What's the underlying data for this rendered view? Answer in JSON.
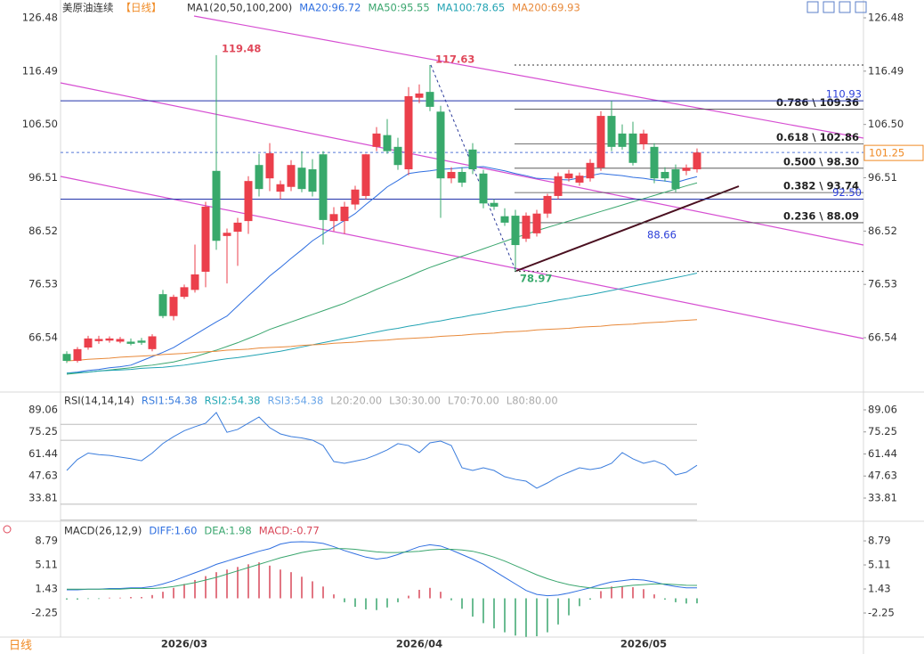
{
  "chart_data": [
    {
      "type": "candlestick",
      "title": "美原油连续",
      "period": "【日线】",
      "indicator": "MA1(20,50,100,200)",
      "tab": "日线",
      "categories": [
        null,
        null,
        null,
        null,
        null,
        null,
        null,
        null,
        null,
        null,
        null,
        "2026/03",
        null,
        null,
        null,
        null,
        null,
        null,
        null,
        null,
        null,
        null,
        null,
        null,
        null,
        null,
        null,
        null,
        null,
        null,
        null,
        null,
        null,
        "2026/04",
        null,
        null,
        null,
        null,
        null,
        null,
        null,
        null,
        null,
        null,
        null,
        null,
        null,
        null,
        null,
        null,
        null,
        null,
        null,
        null,
        "2026/05",
        null,
        null,
        null,
        null,
        null
      ],
      "open": [
        63.5,
        62.2,
        64.7,
        65.9,
        66.0,
        65.8,
        65.8,
        66.0,
        64.4,
        74.7,
        70.6,
        74.2,
        75.5,
        78.9,
        97.8,
        85.6,
        86.4,
        88.4,
        98.9,
        96.4,
        93.9,
        94.8,
        98.4,
        98.1,
        100.9,
        88.4,
        88.4,
        91.5,
        93.1,
        102.3,
        104.5,
        102.3,
        98.1,
        111.5,
        112.6,
        108.9,
        96.4,
        97.6,
        101.8,
        97.3,
        91.8,
        89.3,
        89.4,
        85.1,
        86.1,
        89.8,
        93.1,
        96.4,
        95.6,
        96.4,
        98.4,
        108.1,
        104.8,
        104.8,
        102.8,
        102.3,
        97.6,
        98.1,
        97.8,
        98.1
      ],
      "high": [
        64.0,
        64.8,
        66.9,
        66.9,
        66.8,
        66.7,
        66.4,
        66.5,
        67.2,
        75.5,
        74.6,
        76.5,
        84.0,
        92.0,
        119.48,
        87.0,
        89.0,
        96.8,
        101.0,
        103.0,
        96.0,
        99.8,
        101.5,
        100.0,
        101.5,
        91.0,
        92.0,
        95.0,
        101.0,
        106.0,
        107.5,
        104.0,
        113.5,
        114.0,
        117.63,
        110.0,
        98.5,
        98.5,
        103.0,
        98.0,
        92.5,
        90.8,
        90.5,
        90.0,
        90.5,
        93.5,
        97.5,
        98.0,
        97.5,
        100.0,
        109.0,
        110.93,
        106.5,
        107.0,
        105.5,
        103.0,
        98.5,
        99.0,
        99.0,
        102.0
      ],
      "low": [
        61.8,
        61.9,
        64.3,
        65.4,
        65.6,
        65.5,
        65.1,
        65.2,
        64.0,
        70.2,
        69.8,
        73.8,
        75.0,
        76.0,
        83.0,
        76.7,
        80.0,
        86.0,
        93.0,
        94.0,
        92.5,
        94.0,
        93.8,
        93.0,
        84.0,
        86.5,
        86.0,
        90.5,
        92.5,
        101.5,
        101.0,
        98.0,
        97.0,
        110.5,
        109.0,
        89.0,
        95.5,
        94.8,
        97.2,
        90.8,
        90.5,
        87.5,
        78.97,
        84.5,
        85.5,
        89.0,
        92.5,
        95.8,
        95.0,
        95.8,
        97.8,
        101.5,
        101.8,
        98.8,
        101.8,
        95.5,
        95.8,
        93.8,
        97.0,
        97.5
      ],
      "close": [
        62.2,
        64.4,
        66.4,
        66.3,
        66.4,
        66.3,
        65.4,
        65.6,
        66.8,
        70.6,
        74.2,
        76.0,
        78.4,
        91.1,
        84.7,
        86.2,
        88.1,
        95.9,
        94.4,
        101.1,
        95.3,
        98.9,
        94.4,
        93.9,
        88.6,
        89.7,
        91.1,
        94.3,
        100.9,
        104.8,
        101.5,
        98.9,
        111.8,
        112.3,
        109.8,
        96.4,
        97.6,
        95.6,
        98.1,
        91.7,
        91.1,
        88.1,
        83.9,
        89.4,
        89.8,
        93.1,
        96.8,
        97.3,
        96.9,
        99.3,
        108.1,
        102.3,
        102.3,
        99.3,
        104.8,
        96.4,
        96.4,
        94.4,
        98.4,
        101.25
      ],
      "up_color": "#eb3f4b",
      "down_color": "#38a96b",
      "series": [
        {
          "name": "MA20:96.72",
          "color": "#2f6fe0",
          "values": [
            59.9,
            60.1,
            60.4,
            60.6,
            60.9,
            61.1,
            61.4,
            62.2,
            63.0,
            63.8,
            64.7,
            65.9,
            67.1,
            68.3,
            69.5,
            70.6,
            72.5,
            74.4,
            76.2,
            78.1,
            79.7,
            81.4,
            83.0,
            84.7,
            86.0,
            87.3,
            88.5,
            89.8,
            91.5,
            93.1,
            94.8,
            96.0,
            97.3,
            97.6,
            97.8,
            98.1,
            98.2,
            98.4,
            98.5,
            98.6,
            98.2,
            97.8,
            97.3,
            96.9,
            96.4,
            96.3,
            96.2,
            96.1,
            96.5,
            96.9,
            97.3,
            97.1,
            96.9,
            96.6,
            96.4,
            96.1,
            95.9,
            95.6,
            96.2,
            96.72
          ]
        },
        {
          "name": "MA50:95.55",
          "color": "#3aa66e",
          "values": [
            59.7,
            59.9,
            60.1,
            60.3,
            60.5,
            60.7,
            60.9,
            61.2,
            61.4,
            61.7,
            62.0,
            62.5,
            63.0,
            63.6,
            64.2,
            64.9,
            65.6,
            66.4,
            67.2,
            68.1,
            68.8,
            69.5,
            70.2,
            70.9,
            71.6,
            72.3,
            73.0,
            73.9,
            74.7,
            75.6,
            76.4,
            77.2,
            78.0,
            78.9,
            79.7,
            80.4,
            81.1,
            81.8,
            82.5,
            83.2,
            83.9,
            84.6,
            85.3,
            85.9,
            86.6,
            87.2,
            87.8,
            88.4,
            89.0,
            89.6,
            90.2,
            90.8,
            91.4,
            92.0,
            92.6,
            93.2,
            93.8,
            94.4,
            95.0,
            95.55
          ]
        },
        {
          "name": "MA100:78.65",
          "color": "#22a3b3",
          "values": [
            59.9,
            60.0,
            60.1,
            60.3,
            60.4,
            60.5,
            60.6,
            60.8,
            60.9,
            61.0,
            61.2,
            61.4,
            61.7,
            62.0,
            62.3,
            62.6,
            62.8,
            63.1,
            63.4,
            63.7,
            64.0,
            64.4,
            64.8,
            65.2,
            65.6,
            66.0,
            66.4,
            66.8,
            67.2,
            67.6,
            68.0,
            68.3,
            68.7,
            69.0,
            69.4,
            69.7,
            70.1,
            70.4,
            70.8,
            71.1,
            71.5,
            71.8,
            72.2,
            72.5,
            72.9,
            73.2,
            73.6,
            73.9,
            74.3,
            74.6,
            75.0,
            75.4,
            75.8,
            76.2,
            76.6,
            77.0,
            77.4,
            77.8,
            78.2,
            78.65
          ]
        },
        {
          "name": "MA200:69.93",
          "color": "#e8893a",
          "values": [
            62.2,
            62.3,
            62.5,
            62.6,
            62.7,
            62.9,
            63.0,
            63.1,
            63.2,
            63.4,
            63.5,
            63.6,
            63.8,
            63.9,
            64.0,
            64.2,
            64.3,
            64.4,
            64.6,
            64.7,
            64.8,
            64.9,
            65.1,
            65.2,
            65.3,
            65.5,
            65.6,
            65.7,
            65.9,
            66.0,
            66.1,
            66.3,
            66.4,
            66.5,
            66.6,
            66.8,
            66.9,
            67.0,
            67.2,
            67.3,
            67.4,
            67.6,
            67.7,
            67.8,
            68.0,
            68.1,
            68.2,
            68.3,
            68.5,
            68.6,
            68.7,
            68.9,
            69.0,
            69.1,
            69.3,
            69.4,
            69.5,
            69.7,
            69.8,
            69.93
          ]
        }
      ],
      "ylim": [
        56.36,
        128.15
      ],
      "yticks": [
        126.48,
        116.49,
        {
          "value": 106.5,
          "label": "106.50"
        },
        96.51,
        86.52,
        76.53,
        66.54
      ],
      "last_price": 101.25,
      "hlines": [
        {
          "value": 110.93,
          "label": "110.93"
        },
        {
          "value": 92.5,
          "label": "92.50"
        }
      ],
      "fib_levels": [
        {
          "value": 109.36,
          "label": "0.786 \\ 109.36"
        },
        {
          "value": 102.86,
          "label": "0.618 \\ 102.86"
        },
        {
          "value": 98.3,
          "label": "0.500 \\ 98.30"
        },
        {
          "value": 93.74,
          "label": "0.382 \\ 93.74"
        },
        {
          "value": 88.09,
          "label": "0.236 \\ 88.09"
        }
      ],
      "fib_bounds": [
        117.63,
        78.97
      ],
      "annotations": [
        "119.48",
        "117.63",
        "78.97",
        "88.66"
      ]
    },
    {
      "type": "line",
      "title": "RSI(14,14,14)",
      "series": [
        {
          "name": "RSI1:54.38",
          "color": "#3b7ddd",
          "values": [
            51.1,
            58,
            62,
            61,
            60.5,
            59.5,
            58.5,
            57.2,
            62,
            68,
            72.3,
            76,
            78.5,
            80.7,
            87.4,
            75,
            76.8,
            80.7,
            84.6,
            77.9,
            74.0,
            72.3,
            71.5,
            70.1,
            66.7,
            56.7,
            55.6,
            57,
            58.4,
            61,
            64.0,
            67.9,
            66.7,
            62.3,
            68.4,
            69.5,
            66.7,
            52.8,
            51.1,
            52.8,
            51.1,
            47.2,
            45.5,
            44.4,
            40.0,
            43.3,
            47.2,
            50.0,
            52.8,
            51.7,
            52.8,
            55.6,
            62.3,
            58.4,
            55.6,
            57.2,
            54.5,
            48.3,
            50.0,
            54.38
          ]
        }
      ],
      "legend_extra": [
        {
          "text": "RSI2:54.38",
          "color": "#26a8b5"
        },
        {
          "text": "RSI3:54.38",
          "color": "#6aa6e8"
        }
      ],
      "levels": [
        {
          "value": 20,
          "label": "L20:20.00"
        },
        {
          "value": 30,
          "label": "L30:30.00"
        },
        {
          "value": 70,
          "label": "L70:70.00"
        },
        {
          "value": 80,
          "label": "L80:80.00"
        }
      ],
      "ylim": [
        19.31,
        96.31
      ],
      "yticks": [
        89.06,
        75.25,
        61.44,
        47.63,
        33.81
      ]
    },
    {
      "type": "macd",
      "title": "MACD(26,12,9)",
      "series": [
        {
          "name": "DIFF:1.60",
          "color": "#2f6fe0",
          "values": [
            1.3,
            1.3,
            1.4,
            1.4,
            1.5,
            1.5,
            1.6,
            1.6,
            1.8,
            2.2,
            2.7,
            3.3,
            3.9,
            4.5,
            5.2,
            5.7,
            6.2,
            6.7,
            7.2,
            7.6,
            8.3,
            8.6,
            8.65,
            8.6,
            8.4,
            7.9,
            7.3,
            6.8,
            6.3,
            6.0,
            6.2,
            6.7,
            7.3,
            7.9,
            8.2,
            8.0,
            7.4,
            6.7,
            6.0,
            5.2,
            4.2,
            3.2,
            2.2,
            1.2,
            0.6,
            0.4,
            0.5,
            0.8,
            1.2,
            1.6,
            2.1,
            2.5,
            2.7,
            2.9,
            2.8,
            2.5,
            2.1,
            1.8,
            1.6,
            1.6
          ]
        },
        {
          "name": "DEA:1.98",
          "color": "#3aa66e",
          "values": [
            1.4,
            1.4,
            1.4,
            1.4,
            1.4,
            1.4,
            1.5,
            1.5,
            1.5,
            1.6,
            1.8,
            2.1,
            2.4,
            2.8,
            3.2,
            3.7,
            4.2,
            4.7,
            5.2,
            5.7,
            6.2,
            6.6,
            7.0,
            7.3,
            7.5,
            7.6,
            7.6,
            7.5,
            7.3,
            7.1,
            7.0,
            7.0,
            7.1,
            7.2,
            7.4,
            7.5,
            7.5,
            7.4,
            7.2,
            6.8,
            6.3,
            5.7,
            5.0,
            4.3,
            3.6,
            3.0,
            2.5,
            2.1,
            1.8,
            1.6,
            1.5,
            1.6,
            1.8,
            2.0,
            2.1,
            2.2,
            2.2,
            2.1,
            2.0,
            1.98
          ]
        }
      ],
      "histogram": {
        "name": "MACD:-0.77",
        "up_color": "#d9485a",
        "down_color": "#3aa66e",
        "values": [
          -0.2,
          -0.2,
          -0.1,
          -0.1,
          0.1,
          0.1,
          0.2,
          0.2,
          0.5,
          1.0,
          1.6,
          2.2,
          2.8,
          3.4,
          4.0,
          4.4,
          4.8,
          5.2,
          5.5,
          5.0,
          4.4,
          4.0,
          3.3,
          2.6,
          1.8,
          0.6,
          -0.6,
          -1.3,
          -1.7,
          -1.8,
          -1.4,
          -0.6,
          0.4,
          1.3,
          1.6,
          1.0,
          -0.3,
          -1.6,
          -2.8,
          -3.8,
          -4.6,
          -5.2,
          -5.7,
          -5.9,
          -5.8,
          -5.2,
          -4.0,
          -2.6,
          -1.2,
          -0.2,
          1.1,
          1.8,
          1.8,
          1.7,
          1.4,
          0.6,
          -0.2,
          -0.6,
          -0.8,
          -0.77
        ]
      },
      "ylim": [
        -5.93,
        10.43
      ],
      "yticks": [
        8.79,
        5.11,
        1.43,
        -2.25
      ]
    }
  ]
}
